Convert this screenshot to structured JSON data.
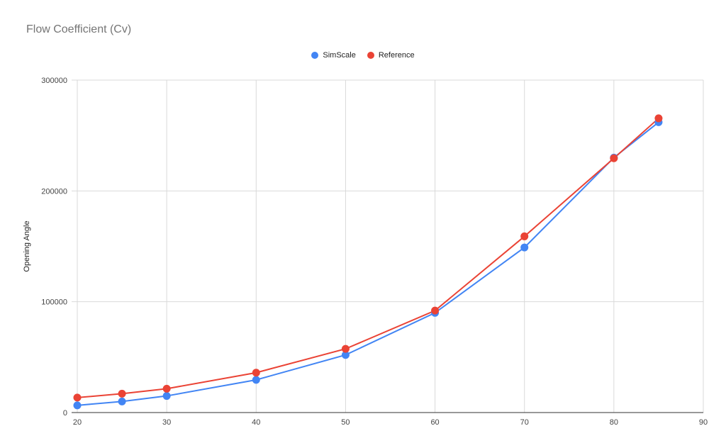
{
  "chart_data": {
    "type": "line",
    "title": "Flow Coefficient (Cv)",
    "xlabel": "",
    "ylabel": "Opening Angle",
    "x": [
      20,
      25,
      30,
      40,
      50,
      60,
      70,
      80,
      85
    ],
    "series": [
      {
        "name": "SimScale",
        "color": "#4285f4",
        "values": [
          6500,
          10000,
          15000,
          29500,
          52000,
          90000,
          149000,
          230000,
          262000
        ]
      },
      {
        "name": "Reference",
        "color": "#ea4335",
        "values": [
          13500,
          17000,
          21500,
          36000,
          57500,
          92000,
          159000,
          229500,
          265500
        ]
      }
    ],
    "xlim": [
      20,
      90
    ],
    "ylim": [
      0,
      300000
    ],
    "xticks": [
      20,
      30,
      40,
      50,
      60,
      70,
      80,
      90
    ],
    "yticks": [
      0,
      100000,
      200000,
      300000
    ],
    "grid": true,
    "legend_position": "top"
  },
  "legend": {
    "items": [
      {
        "label": "SimScale",
        "color": "#4285f4"
      },
      {
        "label": "Reference",
        "color": "#ea4335"
      }
    ]
  }
}
